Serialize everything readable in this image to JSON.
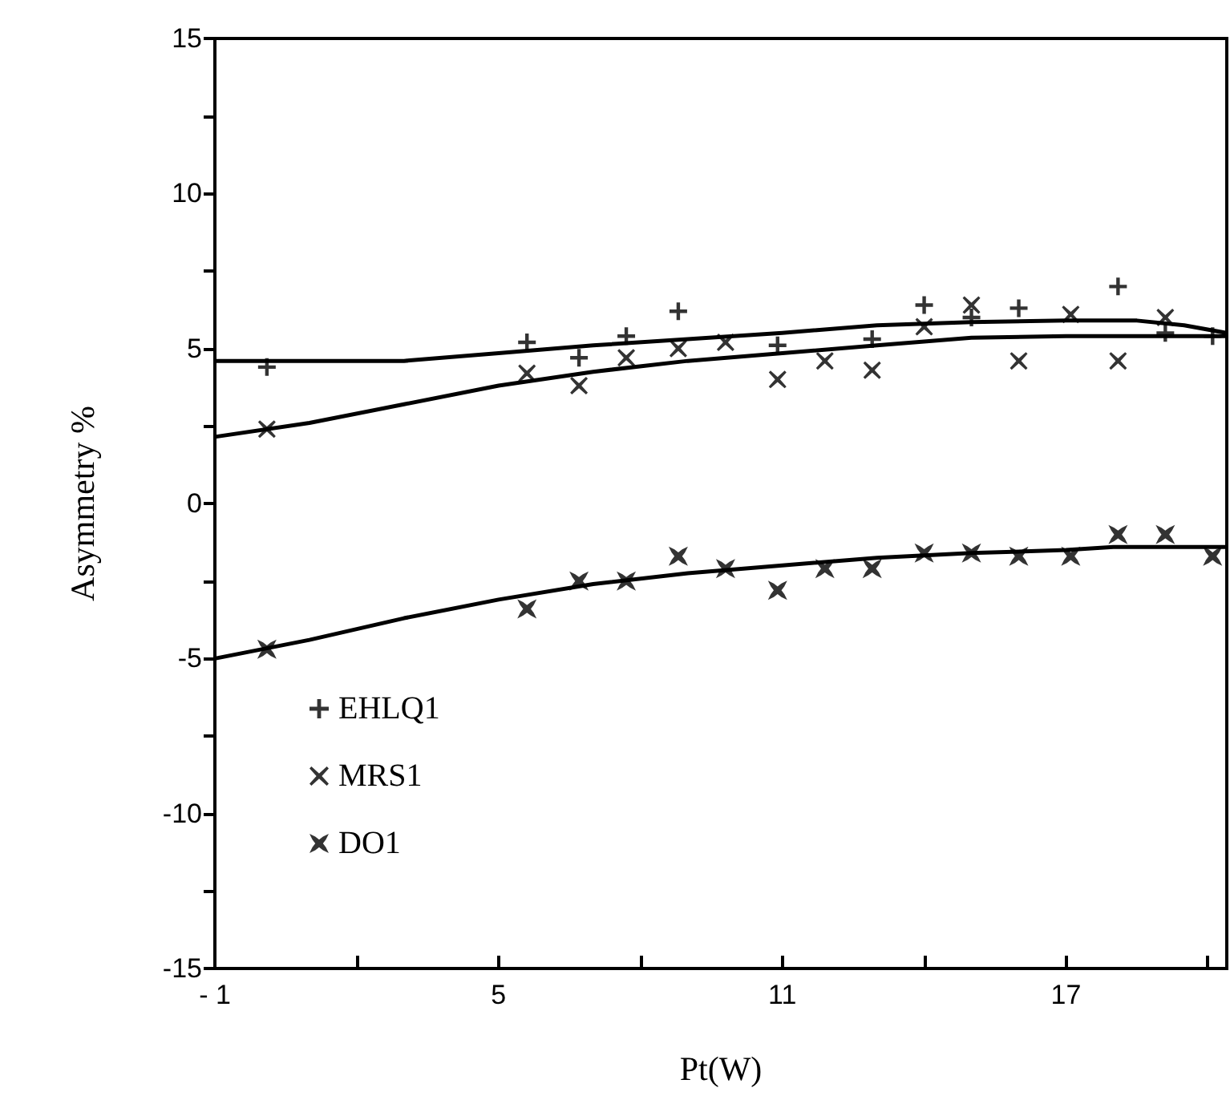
{
  "chart_data": {
    "type": "scatter",
    "xlabel": "Pt(W)",
    "ylabel": "Asymmetry %",
    "xlim": [
      -1,
      20.4
    ],
    "ylim": [
      -15,
      15
    ],
    "xticks": [
      {
        "value": -1,
        "label": "- 1"
      },
      {
        "value": 2,
        "label": null
      },
      5,
      {
        "value": 8,
        "label": null
      },
      11,
      {
        "value": 14,
        "label": null
      },
      17,
      {
        "value": 20,
        "label": null
      }
    ],
    "yticks": [
      -15,
      {
        "value": -12.5,
        "label": null
      },
      -10,
      {
        "value": -7.5,
        "label": null
      },
      -5,
      {
        "value": -2.5,
        "label": null
      },
      0,
      {
        "value": 2.5,
        "label": null
      },
      5,
      {
        "value": 7.5,
        "label": null
      },
      10,
      {
        "value": 12.5,
        "label": null
      },
      15
    ],
    "grid": false,
    "legend": "bottom left",
    "series": [
      {
        "name": "EHLQ1",
        "color": "#000000",
        "marker": "plus",
        "x": [
          0.1,
          5.6,
          6.7,
          7.7,
          8.8,
          9.8,
          10.9,
          12.9,
          14.0,
          15.0,
          16.0,
          17.1,
          18.1,
          19.1,
          20.1
        ],
        "values": [
          4.4,
          5.2,
          4.7,
          5.4,
          6.2,
          null,
          5.1,
          5.3,
          6.4,
          6.0,
          6.3,
          null,
          7.0,
          5.5,
          5.4
        ]
      },
      {
        "name": "MRS1",
        "color": "#000000",
        "marker": "cross",
        "x": [
          0.1,
          5.6,
          6.7,
          7.7,
          8.8,
          9.8,
          10.9,
          11.9,
          12.9,
          14.0,
          15.0,
          16.0,
          17.1,
          18.1,
          19.1
        ],
        "values": [
          2.4,
          4.2,
          3.8,
          4.7,
          5.0,
          5.2,
          4.0,
          4.6,
          4.3,
          5.7,
          6.4,
          4.6,
          6.1,
          4.6,
          6.0
        ]
      },
      {
        "name": "DO1",
        "color": "#000000",
        "marker": "star",
        "x": [
          0.1,
          5.6,
          6.7,
          7.7,
          8.8,
          9.8,
          10.9,
          11.9,
          12.9,
          14.0,
          15.0,
          16.0,
          17.1,
          18.1,
          19.1,
          20.1
        ],
        "values": [
          -4.7,
          -3.4,
          -2.5,
          -2.5,
          -1.7,
          -2.1,
          -2.8,
          -2.1,
          -2.1,
          -1.6,
          -1.6,
          -1.7,
          -1.7,
          -1.0,
          -1.0,
          -1.7
        ]
      },
      {
        "type": "line",
        "color": "#000000",
        "marker": "none",
        "line_style": "solid",
        "x": [
          -1,
          3,
          5,
          7,
          9,
          11,
          13,
          15,
          17,
          18.5,
          19.5,
          20.4
        ],
        "values": [
          4.6,
          4.6,
          4.85,
          5.1,
          5.3,
          5.5,
          5.75,
          5.85,
          5.9,
          5.9,
          5.75,
          5.5
        ]
      },
      {
        "type": "line",
        "color": "#000000",
        "marker": "none",
        "line_style": "solid",
        "x": [
          -1,
          1,
          3,
          5,
          7,
          9,
          11,
          13,
          15,
          17,
          19,
          20.4
        ],
        "values": [
          2.15,
          2.6,
          3.2,
          3.8,
          4.25,
          4.6,
          4.85,
          5.1,
          5.35,
          5.4,
          5.4,
          5.4
        ]
      },
      {
        "type": "line",
        "color": "#000000",
        "marker": "none",
        "line_style": "solid",
        "x": [
          -1,
          1,
          3,
          5,
          7,
          9,
          11,
          13,
          15,
          17,
          18,
          20.4
        ],
        "values": [
          -5.0,
          -4.4,
          -3.7,
          -3.1,
          -2.6,
          -2.25,
          -2.0,
          -1.75,
          -1.6,
          -1.5,
          -1.4,
          -1.4
        ]
      }
    ]
  }
}
